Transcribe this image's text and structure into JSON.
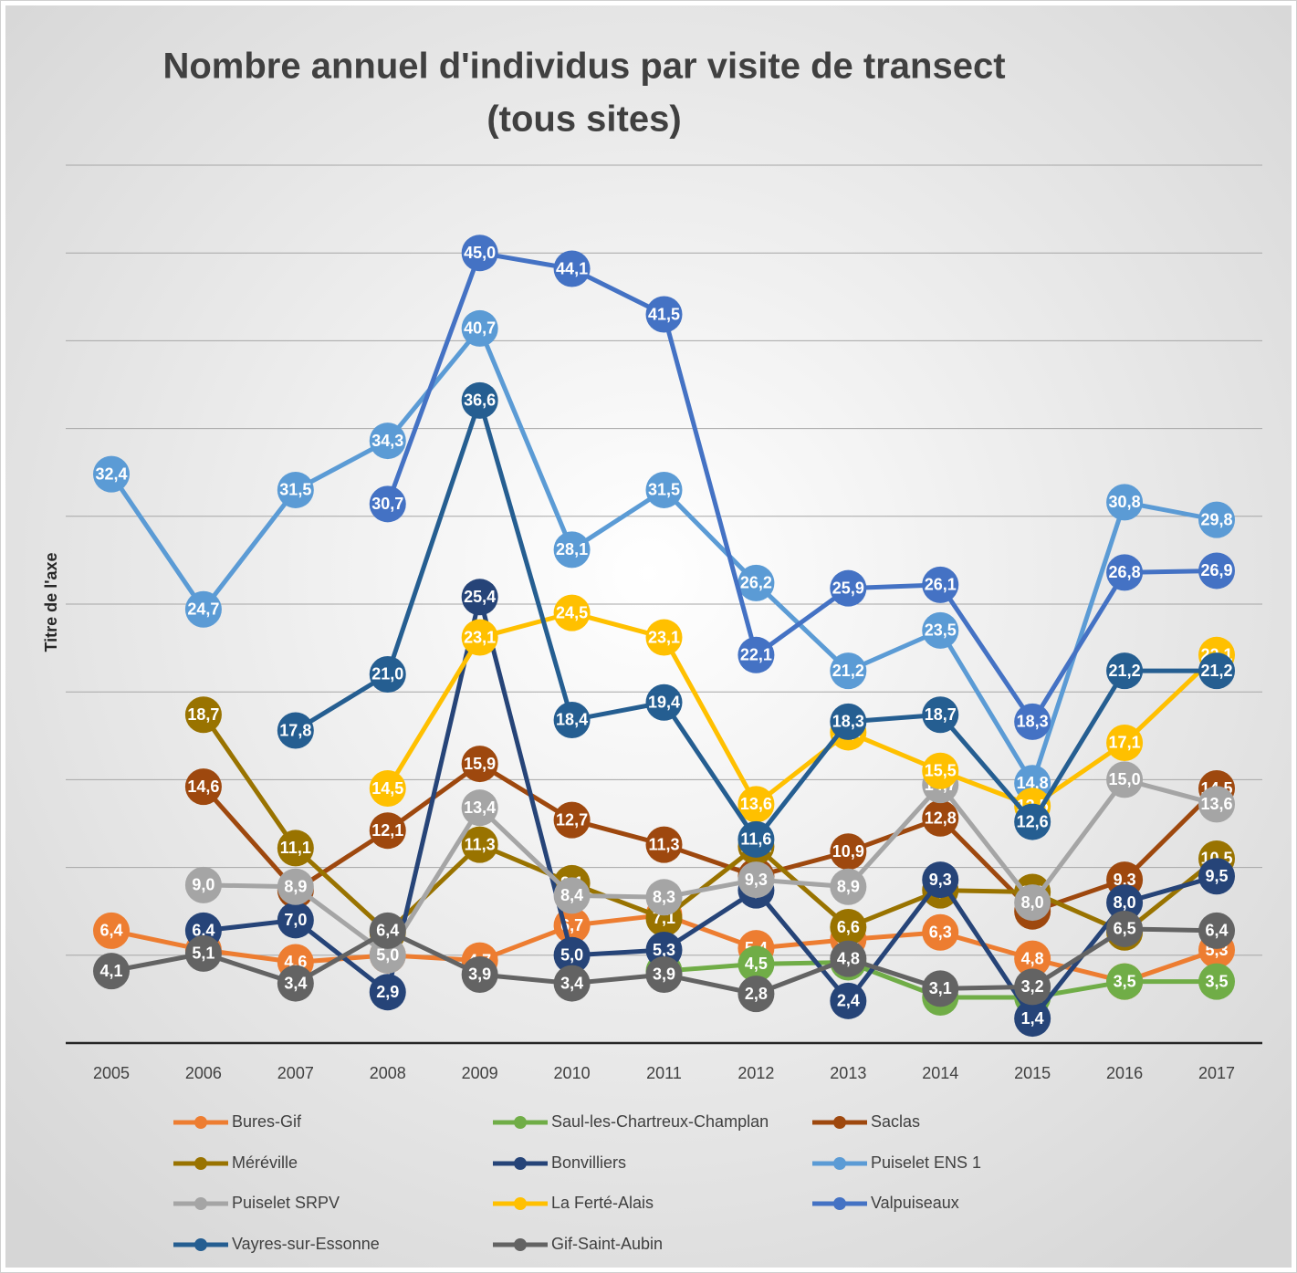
{
  "chart_data": {
    "type": "line",
    "title": "Nombre annuel d'individus par visite de transect",
    "subtitle": "(tous sites)",
    "y_label": "Titre de l'axe",
    "categories": [
      "2005",
      "2006",
      "2007",
      "2008",
      "2009",
      "2010",
      "2011",
      "2012",
      "2013",
      "2014",
      "2015",
      "2016",
      "2017"
    ],
    "ylim": [
      0,
      50
    ],
    "yticks": [
      0,
      5,
      10,
      15,
      20,
      25,
      30,
      35,
      40,
      45,
      50
    ],
    "grid": true,
    "series": [
      {
        "name": "Bures-Gif",
        "color": "#ED7D31",
        "values": [
          6.4,
          5.3,
          4.6,
          5.0,
          4.7,
          6.7,
          7.3,
          5.4,
          5.9,
          6.3,
          4.8,
          3.5,
          5.3
        ],
        "value_labels": [
          "6,4",
          "5,3",
          "4,6",
          "5,0",
          "4,7",
          "6,7",
          "7,3",
          "5,4",
          "5,9",
          "6,3",
          "4,8",
          "3,5",
          "5,3"
        ]
      },
      {
        "name": "Saul-les-Chartreux-Champlan",
        "color": "#70AD47",
        "values": [
          null,
          null,
          null,
          null,
          null,
          null,
          4.1,
          4.5,
          4.6,
          2.6,
          2.6,
          3.5,
          3.5
        ],
        "value_labels": [
          null,
          null,
          null,
          null,
          null,
          null,
          "4,1",
          "4,5",
          "4,6",
          "2,6",
          "2,6",
          "3,5",
          "3,5"
        ]
      },
      {
        "name": "Saclas",
        "color": "#9E480E",
        "values": [
          null,
          14.6,
          8.7,
          12.1,
          15.9,
          12.7,
          11.3,
          9.5,
          10.9,
          12.8,
          7.5,
          9.3,
          14.5
        ],
        "value_labels": [
          null,
          "14,6",
          "8,7",
          "12,1",
          "15,9",
          "12,7",
          "11,3",
          "9,5",
          "10,9",
          "12,8",
          "7,5",
          "9,3",
          "14,5"
        ]
      },
      {
        "name": "Méréville",
        "color": "#997300",
        "values": [
          null,
          18.7,
          11.1,
          6.3,
          11.3,
          9.1,
          7.1,
          11.2,
          6.6,
          8.7,
          8.6,
          6.3,
          10.5
        ],
        "value_labels": [
          null,
          "18,7",
          "11,1",
          "6,3",
          "11,3",
          "9,1",
          "7,1",
          "11,2",
          "6,6",
          "8,7",
          "8,6",
          "6,3",
          "10,5"
        ]
      },
      {
        "name": "Bonvilliers",
        "color": "#264478",
        "values": [
          null,
          6.4,
          7.0,
          2.9,
          25.4,
          5.0,
          5.3,
          8.7,
          2.4,
          9.3,
          1.4,
          8.0,
          9.5
        ],
        "value_labels": [
          null,
          "6,4",
          "7,0",
          "2,9",
          "25,4",
          "5,0",
          "5,3",
          "8,7",
          "2,4",
          "9,3",
          "1,4",
          "8,0",
          "9,5"
        ]
      },
      {
        "name": "Puiselet ENS 1",
        "color": "#5B9BD5",
        "values": [
          32.4,
          24.7,
          31.5,
          34.3,
          40.7,
          28.1,
          31.5,
          26.2,
          21.2,
          23.5,
          14.8,
          30.8,
          29.8
        ],
        "value_labels": [
          "32,4",
          "24,7",
          "31,5",
          "34,3",
          "40,7",
          "28,1",
          "31,5",
          "26,2",
          "21,2",
          "23,5",
          "14,8",
          "30,8",
          "29,8"
        ]
      },
      {
        "name": "Puiselet SRPV",
        "color": "#A5A5A5",
        "values": [
          null,
          9.0,
          8.9,
          5.0,
          13.4,
          8.4,
          8.3,
          9.3,
          8.9,
          14.7,
          8.0,
          15.0,
          13.6
        ],
        "value_labels": [
          null,
          "9,0",
          "8,9",
          "5,0",
          "13,4",
          "8,4",
          "8,3",
          "9,3",
          "8,9",
          "14,7",
          "8,0",
          "15,0",
          "13,6"
        ]
      },
      {
        "name": "La Ferté-Alais",
        "color": "#FFC000",
        "values": [
          null,
          null,
          null,
          14.5,
          23.1,
          24.5,
          23.1,
          13.6,
          17.7,
          15.5,
          13.5,
          17.1,
          22.1
        ],
        "value_labels": [
          null,
          null,
          null,
          "14,5",
          "23,1",
          "24,5",
          "23,1",
          "13,6",
          "17,7",
          "15,5",
          "13,5",
          "17,1",
          "22,1"
        ]
      },
      {
        "name": "Valpuiseaux",
        "color": "#4472C4",
        "values": [
          null,
          null,
          null,
          30.7,
          45.0,
          44.1,
          41.5,
          22.1,
          25.9,
          26.1,
          18.3,
          26.8,
          26.9
        ],
        "value_labels": [
          null,
          null,
          null,
          "30,7",
          "45,0",
          "44,1",
          "41,5",
          "22,1",
          "25,9",
          "26,1",
          "18,3",
          "26,8",
          "26,9"
        ]
      },
      {
        "name": "Vayres-sur-Essonne",
        "color": "#255E91",
        "values": [
          null,
          null,
          17.8,
          21.0,
          36.6,
          18.4,
          19.4,
          11.6,
          18.3,
          18.7,
          12.6,
          21.2,
          21.2
        ],
        "value_labels": [
          null,
          null,
          "17,8",
          "21,0",
          "36,6",
          "18,4",
          "19,4",
          "11,6",
          "18,3",
          "18,7",
          "12,6",
          "21,2",
          "21,2"
        ]
      },
      {
        "name": "Gif-Saint-Aubin",
        "color": "#636363",
        "values": [
          4.1,
          5.1,
          3.4,
          6.4,
          3.9,
          3.4,
          3.9,
          2.8,
          4.8,
          3.1,
          3.2,
          6.5,
          6.4
        ],
        "value_labels": [
          "4,1",
          "5,1",
          "3,4",
          "6,4",
          "3,9",
          "3,4",
          "3,9",
          "2,8",
          "4,8",
          "3,1",
          "3,2",
          "6,5",
          "6,4"
        ]
      }
    ]
  }
}
